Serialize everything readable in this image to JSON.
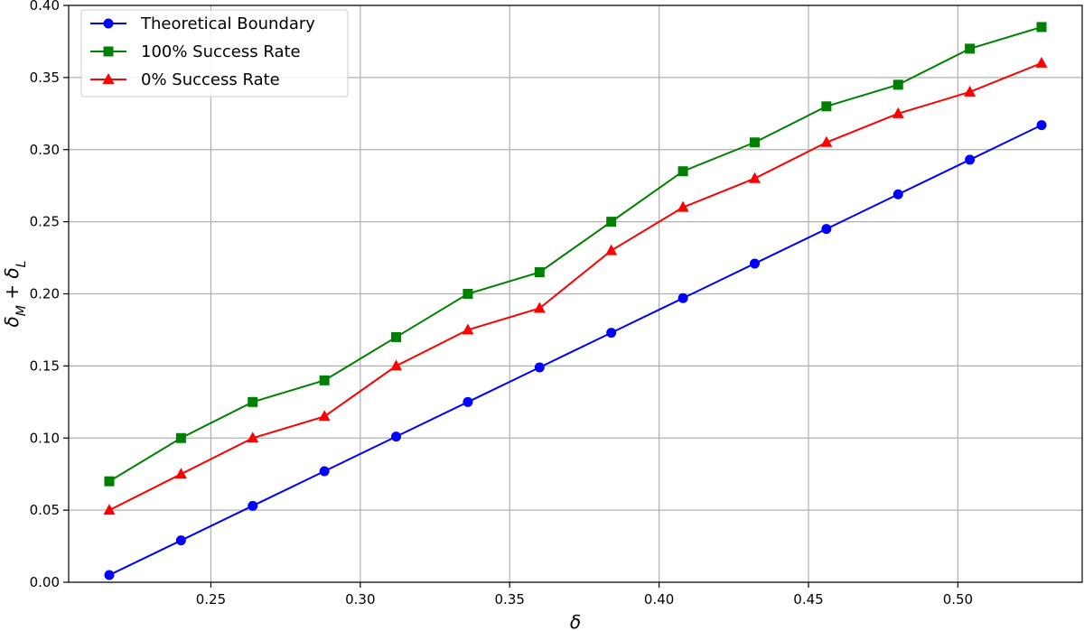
{
  "chart_data": {
    "type": "line",
    "title": "",
    "xlabel": "δ",
    "ylabel": "δ_M + δ_L",
    "xlim": [
      0.2024,
      0.5416
    ],
    "ylim": [
      0.0,
      0.4
    ],
    "xticks": [
      0.25,
      0.3,
      0.35,
      0.4,
      0.45,
      0.5
    ],
    "xtick_labels": [
      "0.25",
      "0.30",
      "0.35",
      "0.40",
      "0.45",
      "0.50"
    ],
    "yticks": [
      0.0,
      0.05,
      0.1,
      0.15,
      0.2,
      0.25,
      0.3,
      0.35,
      0.4
    ],
    "ytick_labels": [
      "0.00",
      "0.05",
      "0.10",
      "0.15",
      "0.20",
      "0.25",
      "0.30",
      "0.35",
      "0.40"
    ],
    "grid": true,
    "legend_position": "top-left",
    "x": [
      0.216,
      0.24,
      0.264,
      0.288,
      0.312,
      0.336,
      0.36,
      0.384,
      0.408,
      0.432,
      0.456,
      0.48,
      0.504,
      0.528
    ],
    "series": [
      {
        "name": "Theoretical Boundary",
        "color": "#0000ff",
        "marker": "circle",
        "values": [
          0.005,
          0.029,
          0.053,
          0.077,
          0.101,
          0.125,
          0.149,
          0.173,
          0.197,
          0.221,
          0.245,
          0.269,
          0.293,
          0.317
        ]
      },
      {
        "name": "100% Success Rate",
        "color": "#008000",
        "marker": "square",
        "values": [
          0.07,
          0.1,
          0.125,
          0.14,
          0.17,
          0.2,
          0.215,
          0.25,
          0.285,
          0.305,
          0.33,
          0.345,
          0.37,
          0.385
        ]
      },
      {
        "name": "0% Success Rate",
        "color": "#ff0000",
        "marker": "triangle",
        "values": [
          0.05,
          0.075,
          0.1,
          0.115,
          0.15,
          0.175,
          0.19,
          0.23,
          0.26,
          0.28,
          0.305,
          0.325,
          0.34,
          0.36
        ]
      }
    ]
  }
}
